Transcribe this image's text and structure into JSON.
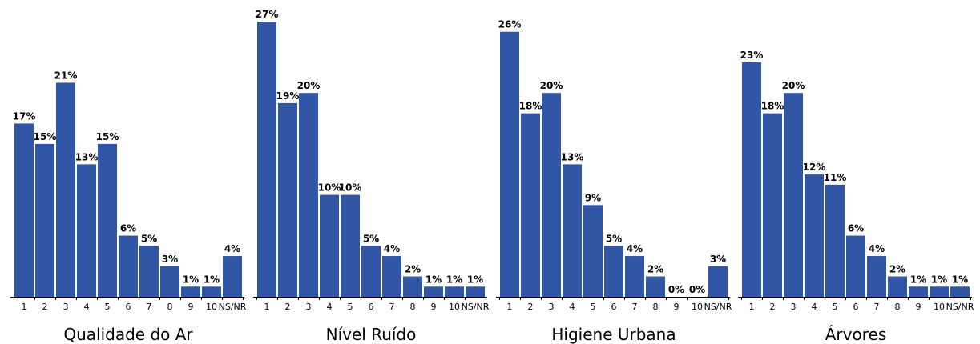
{
  "colors": {
    "bar": "#3156A6",
    "axis": "#000000",
    "background": "#FFFFFF"
  },
  "chart_data": [
    {
      "type": "bar",
      "title": "Qualidade do Ar",
      "categories": [
        "1",
        "2",
        "3",
        "4",
        "5",
        "6",
        "7",
        "8",
        "9",
        "10",
        "NS/NR"
      ],
      "values": [
        17,
        15,
        21,
        13,
        15,
        6,
        5,
        3,
        1,
        1,
        4
      ],
      "value_labels": [
        "17%",
        "15%",
        "21%",
        "13%",
        "15%",
        "6%",
        "5%",
        "3%",
        "1%",
        "1%",
        "4%"
      ],
      "ylim": [
        0,
        27
      ],
      "grid": false
    },
    {
      "type": "bar",
      "title": "Nível Ruído",
      "categories": [
        "1",
        "2",
        "3",
        "4",
        "5",
        "6",
        "7",
        "8",
        "9",
        "10",
        "NS/NR"
      ],
      "values": [
        27,
        19,
        20,
        10,
        10,
        5,
        4,
        2,
        1,
        1,
        1
      ],
      "value_labels": [
        "27%",
        "19%",
        "20%",
        "10%",
        "10%",
        "5%",
        "4%",
        "2%",
        "1%",
        "1%",
        "1%"
      ],
      "ylim": [
        0,
        27
      ],
      "grid": false
    },
    {
      "type": "bar",
      "title": "Higiene Urbana",
      "categories": [
        "1",
        "2",
        "3",
        "4",
        "5",
        "6",
        "7",
        "8",
        "9",
        "10",
        "NS/NR"
      ],
      "values": [
        26,
        18,
        20,
        13,
        9,
        5,
        4,
        2,
        0,
        0,
        3
      ],
      "value_labels": [
        "26%",
        "18%",
        "20%",
        "13%",
        "9%",
        "5%",
        "4%",
        "2%",
        "0%",
        "0%",
        "3%"
      ],
      "ylim": [
        0,
        27
      ],
      "grid": false
    },
    {
      "type": "bar",
      "title": "Árvores",
      "categories": [
        "1",
        "2",
        "3",
        "4",
        "5",
        "6",
        "7",
        "8",
        "9",
        "10",
        "NS/NR"
      ],
      "values": [
        23,
        18,
        20,
        12,
        11,
        6,
        4,
        2,
        1,
        1,
        1
      ],
      "value_labels": [
        "23%",
        "18%",
        "20%",
        "12%",
        "11%",
        "6%",
        "4%",
        "2%",
        "1%",
        "1%",
        "1%"
      ],
      "ylim": [
        0,
        27
      ],
      "grid": false
    }
  ]
}
